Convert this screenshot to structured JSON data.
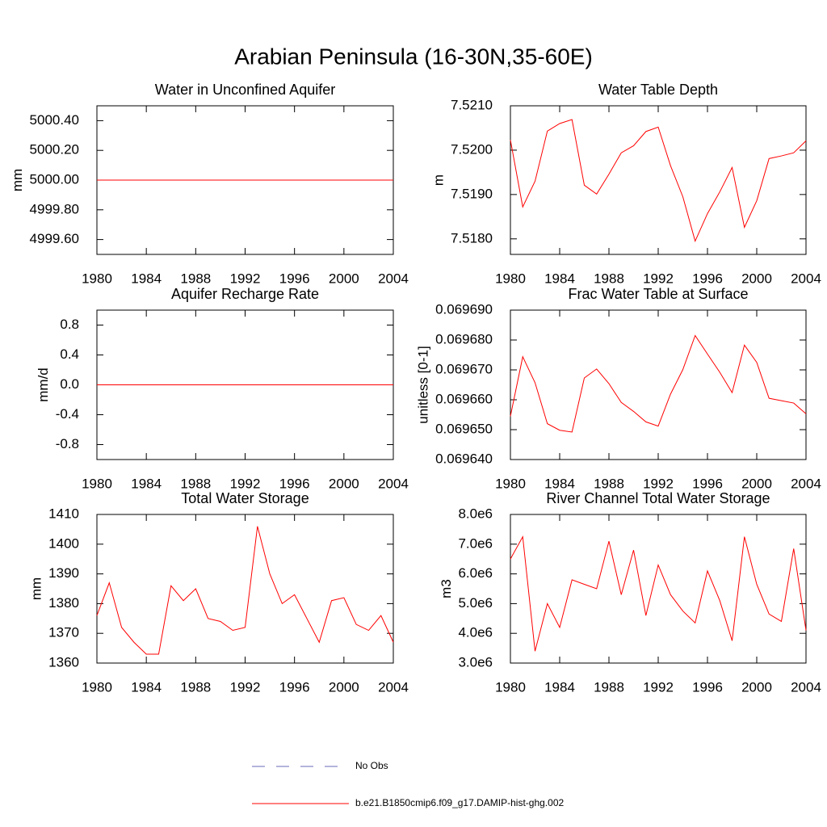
{
  "title": "Arabian Peninsula (16-30N,35-60E)",
  "legend": [
    {
      "name": "No Obs",
      "color": "#6a6ab8",
      "dash": true
    },
    {
      "name": "b.e21.B1850cmip6.f09_g17.DAMIP-hist-ghg.002",
      "color": "#ff0000",
      "dash": false
    }
  ],
  "chart_data": [
    {
      "type": "line",
      "title": "Water in Unconfined Aquifer",
      "y_label": "mm",
      "color": "#ff0000",
      "x": [
        1980,
        1981,
        1982,
        1983,
        1984,
        1985,
        1986,
        1987,
        1988,
        1989,
        1990,
        1991,
        1992,
        1993,
        1994,
        1995,
        1996,
        1997,
        1998,
        1999,
        2000,
        2001,
        2002,
        2003,
        2004
      ],
      "values": [
        5000,
        5000,
        5000,
        5000,
        5000,
        5000,
        5000,
        5000,
        5000,
        5000,
        5000,
        5000,
        5000,
        5000,
        5000,
        5000,
        5000,
        5000,
        5000,
        5000,
        5000,
        5000,
        5000,
        5000,
        5000
      ],
      "xlim": [
        1980,
        2004
      ],
      "xticks": [
        1980,
        1984,
        1988,
        1992,
        1996,
        2000,
        2004
      ],
      "ylim": [
        4999.5,
        5000.5
      ],
      "yticks": [
        {
          "value": 4999.6,
          "label": "4999.60"
        },
        {
          "value": 4999.8,
          "label": "4999.80"
        },
        {
          "value": 5000,
          "label": "5000.00"
        },
        {
          "value": 5000.2,
          "label": "5000.20"
        },
        {
          "value": 5000.4,
          "label": "5000.40"
        }
      ]
    },
    {
      "type": "line",
      "title": "Water Table Depth",
      "y_label": "m",
      "color": "#ff0000",
      "x": [
        1980,
        1981,
        1982,
        1983,
        1984,
        1985,
        1986,
        1987,
        1988,
        1989,
        1990,
        1991,
        1992,
        1993,
        1994,
        1995,
        1996,
        1997,
        1998,
        1999,
        2000,
        2001,
        2002,
        2003,
        2004
      ],
      "values": [
        7.52023,
        7.51872,
        7.5193,
        7.52043,
        7.5206,
        7.52069,
        7.51921,
        7.51901,
        7.51946,
        7.51994,
        7.5201,
        7.52042,
        7.52052,
        7.51965,
        7.51895,
        7.51795,
        7.51857,
        7.51906,
        7.51961,
        7.51826,
        7.51886,
        7.51981,
        7.51987,
        7.51994,
        7.52021
      ],
      "xlim": [
        1980,
        2004
      ],
      "xticks": [
        1980,
        1984,
        1988,
        1992,
        1996,
        2000,
        2004
      ],
      "ylim": [
        7.51765,
        7.521
      ],
      "yticks": [
        {
          "value": 7.518,
          "label": "7.5180"
        },
        {
          "value": 7.519,
          "label": "7.5190"
        },
        {
          "value": 7.52,
          "label": "7.5200"
        },
        {
          "value": 7.521,
          "label": "7.5210"
        }
      ]
    },
    {
      "type": "line",
      "title": "Aquifer Recharge Rate",
      "y_label": "mm/d",
      "color": "#ff0000",
      "x": [
        1980,
        1981,
        1982,
        1983,
        1984,
        1985,
        1986,
        1987,
        1988,
        1989,
        1990,
        1991,
        1992,
        1993,
        1994,
        1995,
        1996,
        1997,
        1998,
        1999,
        2000,
        2001,
        2002,
        2003,
        2004
      ],
      "values": [
        0,
        0,
        0,
        0,
        0,
        0,
        0,
        0,
        0,
        0,
        0,
        0,
        0,
        0,
        0,
        0,
        0,
        0,
        0,
        0,
        0,
        0,
        0,
        0,
        0
      ],
      "xlim": [
        1980,
        2004
      ],
      "xticks": [
        1980,
        1984,
        1988,
        1992,
        1996,
        2000,
        2004
      ],
      "ylim": [
        -1,
        1
      ],
      "yticks": [
        -0.8,
        -0.4,
        {
          "value": 0,
          "label": "0.0"
        },
        0.4,
        0.8
      ]
    },
    {
      "type": "line",
      "title": "Frac Water Table at Surface",
      "y_label": "unitless [0-1]",
      "color": "#ff0000",
      "x": [
        1980,
        1981,
        1982,
        1983,
        1984,
        1985,
        1986,
        1987,
        1988,
        1989,
        1990,
        1991,
        1992,
        1993,
        1994,
        1995,
        1996,
        1997,
        1998,
        1999,
        2000,
        2001,
        2002,
        2003,
        2004
      ],
      "values": [
        0.0696545,
        0.0696744,
        0.0696657,
        0.069652,
        0.0696498,
        0.0696492,
        0.0696673,
        0.0696703,
        0.0696654,
        0.0696591,
        0.0696561,
        0.0696526,
        0.0696512,
        0.0696619,
        0.0696701,
        0.0696815,
        0.0696753,
        0.0696692,
        0.0696624,
        0.0696783,
        0.0696725,
        0.0696605,
        0.0696597,
        0.0696589,
        0.0696553
      ],
      "xlim": [
        1980,
        2004
      ],
      "xticks": [
        1980,
        1984,
        1988,
        1992,
        1996,
        2000,
        2004
      ],
      "ylim": [
        0.06964,
        0.06969
      ],
      "yticks": [
        {
          "value": 0.06964,
          "label": "0.069640"
        },
        {
          "value": 0.06965,
          "label": "0.069650"
        },
        {
          "value": 0.06966,
          "label": "0.069660"
        },
        {
          "value": 0.06967,
          "label": "0.069670"
        },
        {
          "value": 0.06968,
          "label": "0.069680"
        },
        {
          "value": 0.06969,
          "label": "0.069690"
        }
      ]
    },
    {
      "type": "line",
      "title": "Total Water Storage",
      "y_label": "mm",
      "color": "#ff0000",
      "x": [
        1980,
        1981,
        1982,
        1983,
        1984,
        1985,
        1986,
        1987,
        1988,
        1989,
        1990,
        1991,
        1992,
        1993,
        1994,
        1995,
        1996,
        1997,
        1998,
        1999,
        2000,
        2001,
        2002,
        2003,
        2004
      ],
      "values": [
        1376,
        1387,
        1372,
        1367,
        1363,
        1363,
        1386,
        1381,
        1385,
        1375,
        1374,
        1371,
        1372,
        1406,
        1390,
        1380,
        1383,
        1375,
        1367,
        1381,
        1382,
        1373,
        1371,
        1376,
        1367
      ],
      "xlim": [
        1980,
        2004
      ],
      "xticks": [
        1980,
        1984,
        1988,
        1992,
        1996,
        2000,
        2004
      ],
      "ylim": [
        1360,
        1410
      ],
      "yticks": [
        1360,
        1370,
        1380,
        1390,
        1400,
        1410
      ]
    },
    {
      "type": "line",
      "title": "River Channel Total Water Storage",
      "y_label": "m3",
      "color": "#ff0000",
      "x": [
        1980,
        1981,
        1982,
        1983,
        1984,
        1985,
        1986,
        1987,
        1988,
        1989,
        1990,
        1991,
        1992,
        1993,
        1994,
        1995,
        1996,
        1997,
        1998,
        1999,
        2000,
        2001,
        2002,
        2003,
        2004
      ],
      "values": [
        6500000,
        7250000,
        3400000,
        5000000,
        4200000,
        5800000,
        5650000,
        5500000,
        7100000,
        5300000,
        6800000,
        4600000,
        6300000,
        5300000,
        4750000,
        4350000,
        6100000,
        5100000,
        3750000,
        7250000,
        5650000,
        4650000,
        4400000,
        6850000,
        4100000
      ],
      "xlim": [
        1980,
        2004
      ],
      "xticks": [
        1980,
        1984,
        1988,
        1992,
        1996,
        2000,
        2004
      ],
      "ylim": [
        3000000,
        8000000
      ],
      "yticks": [
        {
          "value": 3000000,
          "label": "3.0e6"
        },
        {
          "value": 4000000,
          "label": "4.0e6"
        },
        {
          "value": 5000000,
          "label": "5.0e6"
        },
        {
          "value": 6000000,
          "label": "6.0e6"
        },
        {
          "value": 7000000,
          "label": "7.0e6"
        },
        {
          "value": 8000000,
          "label": "8.0e6"
        }
      ]
    }
  ]
}
